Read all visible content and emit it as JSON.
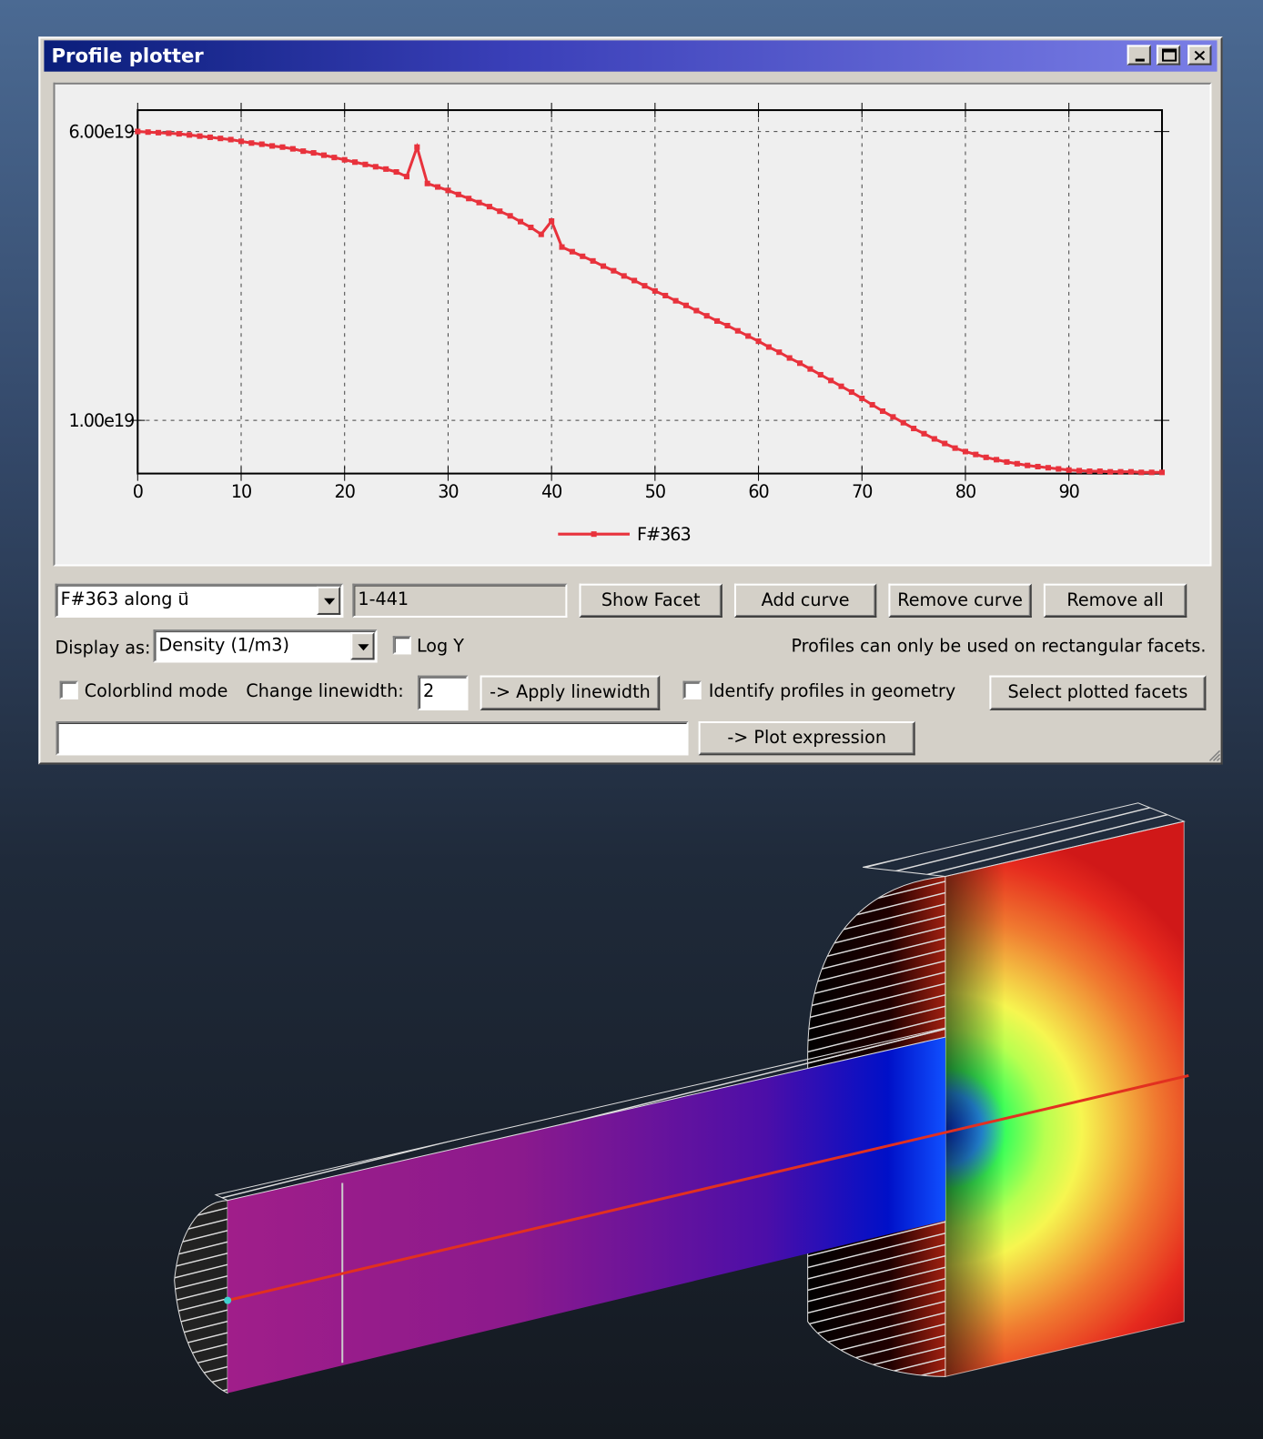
{
  "window": {
    "title": "Profile plotter"
  },
  "chart_data": {
    "type": "line",
    "x": [
      0,
      1,
      2,
      3,
      4,
      5,
      6,
      7,
      8,
      9,
      10,
      11,
      12,
      13,
      14,
      15,
      16,
      17,
      18,
      19,
      20,
      21,
      22,
      23,
      24,
      25,
      26,
      27,
      28,
      29,
      30,
      31,
      32,
      33,
      34,
      35,
      36,
      37,
      38,
      39,
      40,
      41,
      42,
      43,
      44,
      45,
      46,
      47,
      48,
      49,
      50,
      51,
      52,
      53,
      54,
      55,
      56,
      57,
      58,
      59,
      60,
      61,
      62,
      63,
      64,
      65,
      66,
      67,
      68,
      69,
      70,
      71,
      72,
      73,
      74,
      75,
      76,
      77,
      78,
      79,
      80,
      81,
      82,
      83,
      84,
      85,
      86,
      87,
      88,
      89,
      90,
      91,
      92,
      93,
      94,
      95,
      96,
      97,
      98,
      99
    ],
    "series": [
      {
        "name": "F#363",
        "color": "#e8323c",
        "values": [
          6e+19,
          5.99e+19,
          5.98e+19,
          5.97e+19,
          5.96e+19,
          5.94e+19,
          5.92e+19,
          5.9e+19,
          5.88e+19,
          5.86e+19,
          5.83e+19,
          5.8e+19,
          5.78e+19,
          5.75e+19,
          5.73e+19,
          5.7e+19,
          5.66e+19,
          5.63e+19,
          5.59e+19,
          5.55e+19,
          5.51e+19,
          5.47e+19,
          5.43e+19,
          5.39e+19,
          5.35e+19,
          5.3e+19,
          5.22e+19,
          5.73e+19,
          5.1e+19,
          5.04e+19,
          4.98e+19,
          4.91e+19,
          4.84e+19,
          4.77e+19,
          4.7e+19,
          4.62e+19,
          4.54e+19,
          4.44e+19,
          4.34e+19,
          4.22e+19,
          4.45e+19,
          4e+19,
          3.92e+19,
          3.84e+19,
          3.76e+19,
          3.67e+19,
          3.59e+19,
          3.5e+19,
          3.42e+19,
          3.33e+19,
          3.24e+19,
          3.16e+19,
          3.07e+19,
          2.99e+19,
          2.9e+19,
          2.81e+19,
          2.72e+19,
          2.64e+19,
          2.55e+19,
          2.46e+19,
          2.37e+19,
          2.27e+19,
          2.18e+19,
          2.08e+19,
          1.99e+19,
          1.89e+19,
          1.79e+19,
          1.69e+19,
          1.59e+19,
          1.49e+19,
          1.38e+19,
          1.27e+19,
          1.16e+19,
          1.06e+19,
          9.6e+18,
          8.6e+18,
          7.7e+18,
          6.8e+18,
          6e+18,
          5.2e+18,
          4.6e+18,
          4.1e+18,
          3.6e+18,
          3.2e+18,
          2.8e+18,
          2.5e+18,
          2.2e+18,
          2e+18,
          1.8e+18,
          1.6e+18,
          1.4e+18,
          1.3e+18,
          1.2e+18,
          1.2e+18,
          1.1e+18,
          1.1e+18,
          1.1e+18,
          1e+18,
          1e+18,
          1e+18
        ]
      }
    ],
    "xlim": [
      0,
      99
    ],
    "ylim": [
      8e+17,
      6.37e+19
    ],
    "xticks": [
      0,
      10,
      20,
      30,
      40,
      50,
      60,
      70,
      80,
      90
    ],
    "yticks": [
      {
        "value": 1e+19,
        "label": "1.00e19"
      },
      {
        "value": 6e+19,
        "label": "6.00e19"
      }
    ],
    "grid": true,
    "log_y": false
  },
  "controls": {
    "profile_select": "F#363 along u⃗",
    "facet_range": "1-441",
    "show_facet": "Show Facet",
    "add_curve": "Add curve",
    "remove_curve": "Remove curve",
    "remove_all": "Remove all",
    "display_as_label": "Display as:",
    "display_select": "Density (1/m3)",
    "log_y_label": "Log Y",
    "note": "Profiles can only be used on rectangular facets.",
    "colorblind_label": "Colorblind mode",
    "colorblind_checked": false,
    "linewidth_label": "Change linewidth:",
    "linewidth_value": 2,
    "apply_linewidth": "-> Apply linewidth",
    "identify_label": "Identify profiles in geometry",
    "identify_checked": false,
    "select_plotted": "Select plotted facets",
    "plot_expression": "-> Plot expression"
  }
}
